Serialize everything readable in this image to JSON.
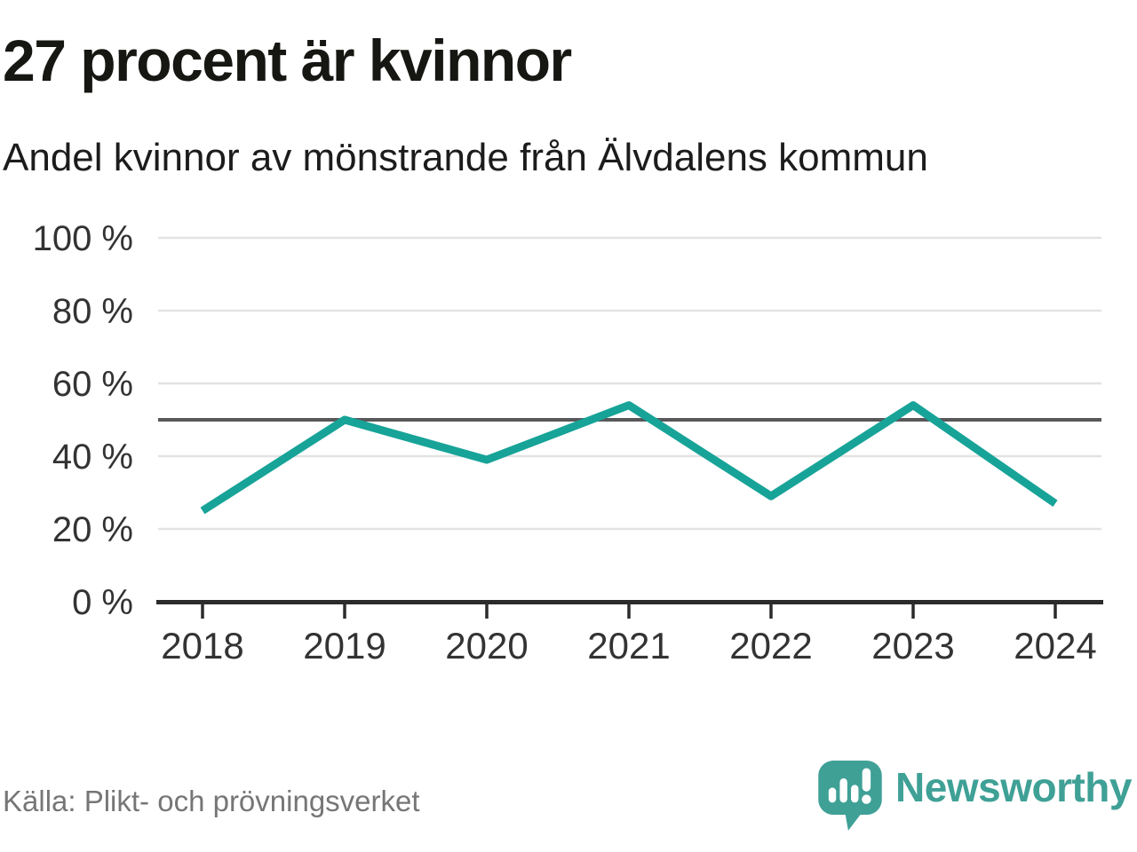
{
  "header": {
    "title": "27 procent är kvinnor",
    "subtitle": "Andel kvinnor av mönstrande från Älvdalens kommun"
  },
  "footer": {
    "source": "Källa: Plikt- och prövningsverket",
    "logo_text": "Newsworthy"
  },
  "chart_data": {
    "type": "line",
    "title": "27 procent är kvinnor",
    "subtitle": "Andel kvinnor av mönstrande från Älvdalens kommun",
    "x": [
      2018,
      2019,
      2020,
      2021,
      2022,
      2023,
      2024
    ],
    "series": [
      {
        "name": "Andel kvinnor av mönstrande",
        "values": [
          25,
          50,
          39,
          54,
          29,
          54,
          27
        ]
      }
    ],
    "y_ticks": [
      0,
      20,
      40,
      60,
      80,
      100
    ],
    "y_tick_suffix": " %",
    "ylim": [
      0,
      100
    ],
    "reference_line": 50,
    "grid": true,
    "legend_position": "none",
    "colors": {
      "line": "#17a398",
      "reference_line": "#58585a",
      "gridline": "#e3e3e3",
      "axis": "#2b2b2b",
      "tick_label": "#333333",
      "logo_teal": "#3fa096"
    }
  }
}
